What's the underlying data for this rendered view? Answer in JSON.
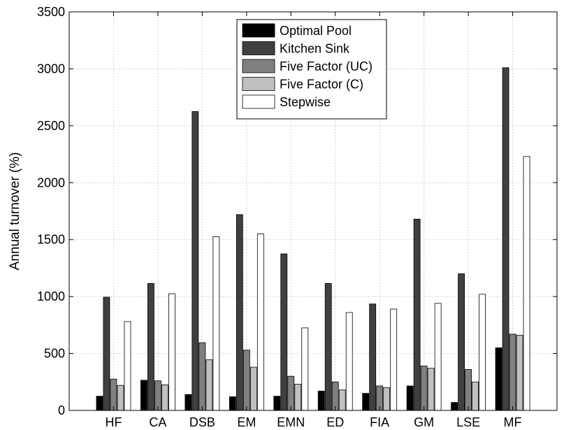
{
  "chart_data": {
    "type": "bar",
    "title": "",
    "xlabel": "",
    "ylabel": "Annual turnover (%)",
    "ylim": [
      0,
      3500
    ],
    "yticks": [
      0,
      500,
      1000,
      1500,
      2000,
      2500,
      3000,
      3500
    ],
    "grid": true,
    "legend_position": "top-center",
    "categories": [
      "HF",
      "CA",
      "DSB",
      "EM",
      "EMN",
      "ED",
      "FIA",
      "GM",
      "LSE",
      "MF"
    ],
    "series": [
      {
        "name": "Optimal Pool",
        "color": "#000000",
        "values": [
          125,
          265,
          140,
          120,
          125,
          170,
          150,
          215,
          70,
          550
        ]
      },
      {
        "name": "Kitchen Sink",
        "color": "#404040",
        "values": [
          995,
          1115,
          2625,
          1720,
          1375,
          1115,
          935,
          1680,
          1200,
          3010
        ]
      },
      {
        "name": "Five Factor (UC)",
        "color": "#808080",
        "values": [
          275,
          260,
          595,
          530,
          300,
          250,
          215,
          390,
          360,
          670
        ]
      },
      {
        "name": "Five Factor (C)",
        "color": "#c0c0c0",
        "values": [
          220,
          225,
          445,
          380,
          230,
          180,
          200,
          370,
          250,
          660
        ]
      },
      {
        "name": "Stepwise",
        "color": "#ffffff",
        "values": [
          780,
          1025,
          1525,
          1550,
          725,
          860,
          890,
          940,
          1020,
          2230
        ]
      }
    ]
  }
}
